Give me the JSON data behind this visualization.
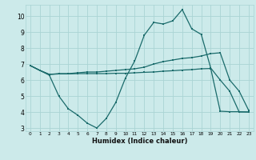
{
  "xlabel": "Humidex (Indice chaleur)",
  "background_color": "#cceaea",
  "grid_color": "#aad4d4",
  "line_color": "#1a6b6b",
  "xlim": [
    -0.5,
    23.5
  ],
  "ylim": [
    2.8,
    10.7
  ],
  "yticks": [
    3,
    4,
    5,
    6,
    7,
    8,
    9,
    10
  ],
  "xticks": [
    0,
    1,
    2,
    3,
    4,
    5,
    6,
    7,
    8,
    9,
    10,
    11,
    12,
    13,
    14,
    15,
    16,
    17,
    18,
    19,
    20,
    21,
    22,
    23
  ],
  "line1_x": [
    0,
    1,
    2,
    3,
    4,
    5,
    6,
    7,
    8,
    9,
    10,
    11,
    12,
    13,
    14,
    15,
    16,
    17,
    18,
    19,
    20,
    21,
    22,
    23
  ],
  "line1_y": [
    6.9,
    6.6,
    6.3,
    5.0,
    4.2,
    3.8,
    3.3,
    3.0,
    3.6,
    4.6,
    6.1,
    7.2,
    8.8,
    9.6,
    9.5,
    9.7,
    10.4,
    9.2,
    8.85,
    6.75,
    6.0,
    5.3,
    4.0,
    4.0
  ],
  "line2_x": [
    0,
    1,
    2,
    3,
    4,
    5,
    6,
    7,
    8,
    9,
    10,
    11,
    12,
    13,
    14,
    15,
    16,
    17,
    18,
    19,
    20,
    21,
    22,
    23
  ],
  "line2_y": [
    6.9,
    6.6,
    6.35,
    6.4,
    6.4,
    6.45,
    6.5,
    6.5,
    6.55,
    6.6,
    6.65,
    6.7,
    6.8,
    7.0,
    7.15,
    7.25,
    7.35,
    7.4,
    7.5,
    7.65,
    7.7,
    6.0,
    5.3,
    4.1
  ],
  "line3_x": [
    0,
    1,
    2,
    3,
    4,
    5,
    6,
    7,
    8,
    9,
    10,
    11,
    12,
    13,
    14,
    15,
    16,
    17,
    18,
    19,
    20,
    21,
    22,
    23
  ],
  "line3_y": [
    6.9,
    6.6,
    6.35,
    6.38,
    6.38,
    6.4,
    6.4,
    6.4,
    6.4,
    6.42,
    6.42,
    6.45,
    6.48,
    6.5,
    6.55,
    6.58,
    6.62,
    6.65,
    6.7,
    6.72,
    4.05,
    4.02,
    4.02,
    4.0
  ]
}
